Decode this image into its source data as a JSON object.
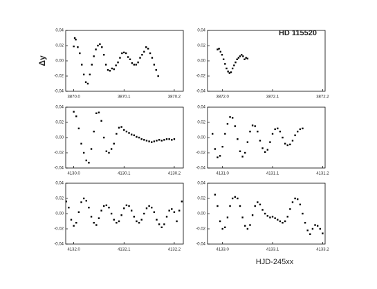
{
  "chart_data": [
    {
      "type": "scatter",
      "y_label": "Δy",
      "color": "#000000",
      "x": [
        3870.0,
        3870.002,
        3870.004,
        3870.008,
        3870.012,
        3870.016,
        3870.02,
        3870.024,
        3870.028,
        3870.032,
        3870.036,
        3870.04,
        3870.044,
        3870.048,
        3870.052,
        3870.056,
        3870.06,
        3870.064,
        3870.068,
        3870.072,
        3870.076,
        3870.08,
        3870.084,
        3870.088,
        3870.092,
        3870.096,
        3870.1,
        3870.104,
        3870.108,
        3870.112,
        3870.116,
        3870.12,
        3870.124,
        3870.128,
        3870.132,
        3870.136,
        3870.14,
        3870.144,
        3870.148,
        3870.152,
        3870.156,
        3870.16,
        3870.164,
        3870.168
      ],
      "values": [
        0.019,
        0.03,
        0.028,
        0.018,
        0.01,
        -0.005,
        -0.018,
        -0.028,
        -0.03,
        -0.018,
        -0.005,
        0.006,
        0.015,
        0.02,
        0.022,
        0.018,
        0.008,
        -0.005,
        -0.012,
        -0.013,
        -0.01,
        -0.011,
        -0.006,
        -0.002,
        0.004,
        0.01,
        0.011,
        0.01,
        0.005,
        0.002,
        -0.003,
        -0.005,
        -0.005,
        -0.002,
        0.004,
        0.008,
        0.012,
        0.018,
        0.016,
        0.01,
        0.004,
        -0.005,
        -0.012,
        -0.02
      ],
      "xlim": [
        3869.984,
        3870.218
      ],
      "ylim": [
        -0.04,
        0.04
      ],
      "xticks": [
        {
          "value": 3870,
          "label": "3870.0"
        },
        3870.1,
        3870.2
      ],
      "yticks": [
        -0.04,
        -0.02,
        {
          "value": 0,
          "label": "0.00"
        },
        0.02,
        0.04
      ]
    },
    {
      "type": "scatter",
      "annotation": "HD 115520",
      "color": "#000000",
      "x": [
        3871.99,
        3871.993,
        3871.996,
        3871.999,
        3872.002,
        3872.005,
        3872.008,
        3872.011,
        3872.014,
        3872.017,
        3872.02,
        3872.023,
        3872.026,
        3872.029,
        3872.032,
        3872.035,
        3872.038,
        3872.041,
        3872.044,
        3872.047,
        3872.05
      ],
      "values": [
        0.015,
        0.016,
        0.012,
        0.008,
        0.002,
        -0.004,
        -0.01,
        -0.014,
        -0.016,
        -0.015,
        -0.01,
        -0.006,
        -0.002,
        0.002,
        0.004,
        0.006,
        0.008,
        0.006,
        0.002,
        0.004,
        0.003
      ],
      "xlim": [
        3871.97,
        3872.205
      ],
      "ylim": [
        -0.04,
        0.04
      ],
      "xticks": [
        {
          "value": 3872,
          "label": "3872.0"
        },
        3872.1,
        3872.2
      ],
      "yticks": [
        -0.04,
        -0.02,
        {
          "value": 0,
          "label": "0.00"
        },
        0.02,
        0.04
      ]
    },
    {
      "type": "scatter",
      "color": "#000000",
      "x": [
        4130.0,
        4130.005,
        4130.01,
        4130.015,
        4130.02,
        4130.025,
        4130.03,
        4130.035,
        4130.04,
        4130.045,
        4130.05,
        4130.055,
        4130.06,
        4130.065,
        4130.07,
        4130.075,
        4130.08,
        4130.085,
        4130.09,
        4130.095,
        4130.1,
        4130.105,
        4130.11,
        4130.115,
        4130.12,
        4130.125,
        4130.13,
        4130.135,
        4130.14,
        4130.145,
        4130.15,
        4130.155,
        4130.16,
        4130.165,
        4130.17,
        4130.175,
        4130.18,
        4130.185,
        4130.19,
        4130.195,
        4130.2
      ],
      "values": [
        0.034,
        0.028,
        0.012,
        -0.008,
        -0.02,
        -0.03,
        -0.033,
        -0.015,
        0.008,
        0.032,
        0.033,
        0.022,
        0.0,
        -0.018,
        -0.02,
        -0.015,
        -0.008,
        0.005,
        0.013,
        0.014,
        0.01,
        0.008,
        0.006,
        0.004,
        0.003,
        0.001,
        0.0,
        -0.002,
        -0.003,
        -0.004,
        -0.005,
        -0.006,
        -0.005,
        -0.004,
        -0.003,
        -0.004,
        -0.003,
        -0.002,
        -0.002,
        -0.003,
        -0.002
      ],
      "xlim": [
        4129.984,
        4130.218
      ],
      "ylim": [
        -0.04,
        0.04
      ],
      "xticks": [
        {
          "value": 4130,
          "label": "4130.0"
        },
        4130.1,
        4130.2
      ],
      "yticks": [
        -0.04,
        -0.02,
        {
          "value": 0,
          "label": "0.00"
        },
        0.02,
        0.04
      ]
    },
    {
      "type": "scatter",
      "color": "#000000",
      "x": [
        4130.98,
        4130.985,
        4130.99,
        4130.995,
        4131.0,
        4131.005,
        4131.01,
        4131.015,
        4131.02,
        4131.025,
        4131.03,
        4131.035,
        4131.04,
        4131.045,
        4131.05,
        4131.055,
        4131.06,
        4131.065,
        4131.07,
        4131.075,
        4131.08,
        4131.085,
        4131.09,
        4131.095,
        4131.1,
        4131.105,
        4131.11,
        4131.115,
        4131.12,
        4131.125,
        4131.13,
        4131.135,
        4131.14,
        4131.145,
        4131.15,
        4131.155,
        4131.16
      ],
      "values": [
        0.005,
        -0.015,
        -0.026,
        -0.024,
        -0.012,
        0.005,
        0.018,
        0.027,
        0.026,
        0.015,
        -0.002,
        -0.018,
        -0.025,
        -0.02,
        -0.006,
        0.008,
        0.016,
        0.015,
        0.008,
        -0.004,
        -0.014,
        -0.019,
        -0.016,
        -0.006,
        0.005,
        0.011,
        0.012,
        0.008,
        0.0,
        -0.008,
        -0.01,
        -0.009,
        -0.004,
        0.003,
        0.008,
        0.011,
        0.012
      ],
      "xlim": [
        4130.97,
        4131.205
      ],
      "ylim": [
        -0.04,
        0.04
      ],
      "xticks": [
        {
          "value": 4131,
          "label": "4131.0"
        },
        4131.1,
        4131.2
      ],
      "yticks": [
        -0.04,
        -0.02,
        {
          "value": 0,
          "label": "0.00"
        },
        0.02,
        0.04
      ]
    },
    {
      "type": "scatter",
      "color": "#000000",
      "x": [
        4131.985,
        4131.99,
        4131.995,
        4132.0,
        4132.005,
        4132.01,
        4132.015,
        4132.02,
        4132.025,
        4132.03,
        4132.035,
        4132.04,
        4132.045,
        4132.05,
        4132.055,
        4132.06,
        4132.065,
        4132.07,
        4132.075,
        4132.08,
        4132.085,
        4132.09,
        4132.095,
        4132.1,
        4132.105,
        4132.11,
        4132.115,
        4132.12,
        4132.125,
        4132.13,
        4132.135,
        4132.14,
        4132.145,
        4132.15,
        4132.155,
        4132.16,
        4132.165,
        4132.17,
        4132.175,
        4132.18,
        4132.185,
        4132.19,
        4132.195,
        4132.2,
        4132.205,
        4132.21,
        4132.215
      ],
      "values": [
        0.016,
        0.008,
        -0.008,
        -0.016,
        -0.012,
        0.002,
        0.015,
        0.02,
        0.017,
        0.008,
        -0.004,
        -0.012,
        -0.015,
        -0.006,
        0.004,
        0.01,
        0.011,
        0.008,
        0.0,
        -0.008,
        -0.012,
        -0.01,
        -0.002,
        0.007,
        0.011,
        0.01,
        0.004,
        -0.004,
        -0.01,
        -0.012,
        -0.008,
        0.0,
        0.007,
        0.01,
        0.008,
        0.002,
        -0.008,
        -0.014,
        -0.018,
        -0.014,
        -0.004,
        0.004,
        0.006,
        0.002,
        -0.01,
        0.004,
        0.016
      ],
      "xlim": [
        4131.984,
        4132.218
      ],
      "ylim": [
        -0.04,
        0.04
      ],
      "xticks": [
        {
          "value": 4132,
          "label": "4132.0"
        },
        4132.1,
        4132.2
      ],
      "yticks": [
        -0.04,
        -0.02,
        {
          "value": 0,
          "label": "0.00"
        },
        0.02,
        0.04
      ]
    },
    {
      "type": "scatter",
      "x_label": "HJD-245xx",
      "color": "#000000",
      "x": [
        4132.985,
        4132.99,
        4132.995,
        4133.0,
        4133.005,
        4133.01,
        4133.015,
        4133.02,
        4133.025,
        4133.03,
        4133.035,
        4133.04,
        4133.045,
        4133.05,
        4133.055,
        4133.06,
        4133.065,
        4133.07,
        4133.075,
        4133.08,
        4133.085,
        4133.09,
        4133.095,
        4133.1,
        4133.105,
        4133.11,
        4133.115,
        4133.12,
        4133.125,
        4133.13,
        4133.135,
        4133.14,
        4133.145,
        4133.15,
        4133.155,
        4133.16,
        4133.165,
        4133.17,
        4133.175,
        4133.18,
        4133.185,
        4133.19,
        4133.195,
        4133.2
      ],
      "values": [
        0.025,
        0.01,
        -0.01,
        -0.02,
        -0.018,
        -0.005,
        0.01,
        0.02,
        0.022,
        0.02,
        0.01,
        -0.005,
        -0.016,
        -0.02,
        -0.015,
        -0.002,
        0.01,
        0.015,
        0.012,
        0.005,
        0.0,
        -0.003,
        -0.005,
        -0.004,
        -0.006,
        -0.008,
        -0.01,
        -0.012,
        -0.01,
        -0.004,
        0.006,
        0.015,
        0.02,
        0.019,
        0.012,
        0.0,
        -0.012,
        -0.022,
        -0.027,
        -0.02,
        -0.015,
        -0.016,
        -0.02,
        -0.026
      ],
      "xlim": [
        4132.97,
        4133.205
      ],
      "ylim": [
        -0.04,
        0.04
      ],
      "xticks": [
        {
          "value": 4133,
          "label": "4133.0"
        },
        4133.1,
        4133.2
      ],
      "yticks": [
        -0.04,
        -0.02,
        {
          "value": 0,
          "label": "0.00"
        },
        0.02,
        0.04
      ]
    }
  ]
}
